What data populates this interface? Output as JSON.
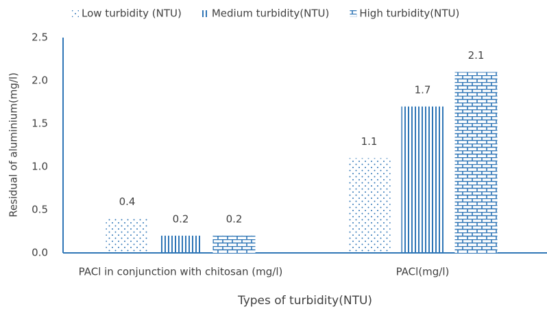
{
  "chart_data": {
    "type": "bar",
    "x_label": "Types of turbidity(NTU)",
    "y_label": "Residual of aluminium(mg/l)",
    "categories": [
      "PACl in conjunction with chitosan (mg/l)",
      "PACl(mg/l)"
    ],
    "series": [
      {
        "name": "Low turbidity (NTU)",
        "color": "#2e75b6",
        "pattern": "dots",
        "values": [
          0.4,
          1.1
        ]
      },
      {
        "name": "Medium turbidity(NTU)",
        "color": "#2e75b6",
        "pattern": "vertical",
        "values": [
          0.2,
          1.7
        ]
      },
      {
        "name": "High turbidity(NTU)",
        "color": "#2e75b6",
        "pattern": "brick",
        "values": [
          0.2,
          2.1
        ]
      }
    ],
    "ylim": [
      0,
      2.5
    ],
    "yticks": [
      {
        "value": 0,
        "label": "0.0"
      },
      0.5,
      {
        "value": 1,
        "label": "1.0"
      },
      1.5,
      {
        "value": 2,
        "label": "2.0"
      },
      2.5
    ],
    "grid": false,
    "legend": "top",
    "data_labels": true
  }
}
